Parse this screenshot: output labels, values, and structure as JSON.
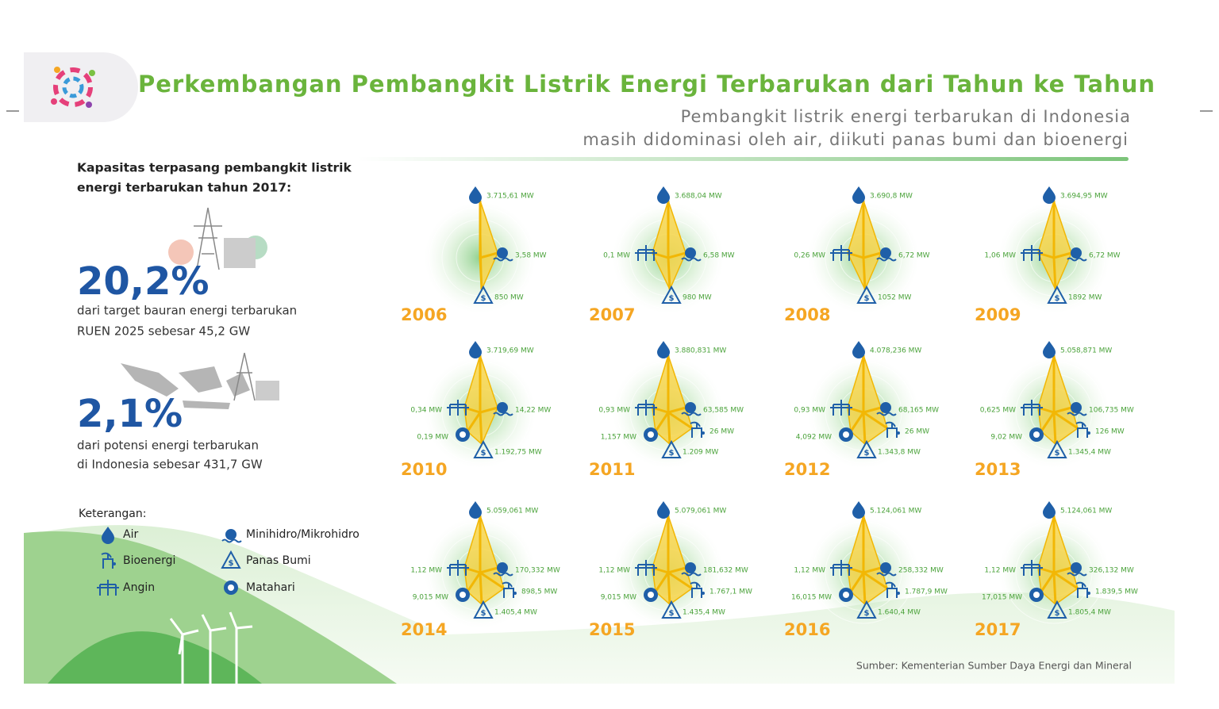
{
  "header": {
    "title": "Perkembangan Pembangkit Listrik Energi Terbarukan dari Tahun ke Tahun",
    "subtitle_lines": [
      "Pembangkit listrik energi terbarukan di Indonesia",
      "masih didominasi oleh air, diikuti panas bumi dan bioenergi"
    ]
  },
  "summary": {
    "heading_lines": [
      "Kapasitas terpasang pembangkit listrik",
      "energi terbarukan tahun 2017:"
    ],
    "stats": [
      {
        "value": "20,2%",
        "lines": [
          "dari target bauran energi terbarukan",
          "RUEN 2025 sebesar 45,2 GW"
        ]
      },
      {
        "value": "2,1%",
        "lines": [
          "dari potensi energi terbarukan",
          "di Indonesia sebesar 431,7 GW"
        ]
      }
    ]
  },
  "legend": {
    "title": "Keterangan:",
    "air": "Air",
    "bioenergi": "Bioenergi",
    "angin": "Angin",
    "minihidro": "Minihidro/Mikrohidro",
    "panas_bumi": "Panas Bumi",
    "matahari": "Matahari"
  },
  "years": [
    {
      "year": "2006",
      "air": "3.715,61 MW",
      "minihidro": "3,58 MW",
      "panas_bumi": "850 MW"
    },
    {
      "year": "2007",
      "air": "3.688,04 MW",
      "minihidro": "6,58 MW",
      "panas_bumi": "980 MW",
      "angin": "0,1 MW"
    },
    {
      "year": "2008",
      "air": "3.690,8 MW",
      "minihidro": "6,72 MW",
      "panas_bumi": "1052 MW",
      "angin": "0,26 MW"
    },
    {
      "year": "2009",
      "air": "3.694,95 MW",
      "minihidro": "6,72 MW",
      "panas_bumi": "1892 MW",
      "angin": "1,06 MW"
    },
    {
      "year": "2010",
      "air": "3.719,69 MW",
      "minihidro": "14,22 MW",
      "panas_bumi": "1.192,75 MW",
      "matahari": "0,19 MW",
      "angin": "0,34 MW"
    },
    {
      "year": "2011",
      "air": "3.880,831 MW",
      "minihidro": "63,585 MW",
      "bioenergi": "26 MW",
      "panas_bumi": "1.209 MW",
      "matahari": "1,157 MW",
      "angin": "0,93 MW"
    },
    {
      "year": "2012",
      "air": "4.078,236 MW",
      "minihidro": "68,165 MW",
      "bioenergi": "26 MW",
      "panas_bumi": "1.343,8 MW",
      "matahari": "4,092 MW",
      "angin": "0,93 MW"
    },
    {
      "year": "2013",
      "air": "5.058,871 MW",
      "minihidro": "106,735 MW",
      "bioenergi": "126 MW",
      "panas_bumi": "1.345,4 MW",
      "matahari": "9,02 MW",
      "angin": "0,625 MW"
    },
    {
      "year": "2014",
      "air": "5.059,061 MW",
      "minihidro": "170,332 MW",
      "bioenergi": "898,5 MW",
      "panas_bumi": "1.405,4 MW",
      "matahari": "9,015 MW",
      "angin": "1,12 MW"
    },
    {
      "year": "2015",
      "air": "5.079,061 MW",
      "minihidro": "181,632 MW",
      "bioenergi": "1.767,1 MW",
      "panas_bumi": "1.435,4 MW",
      "matahari": "9,015 MW",
      "angin": "1,12 MW"
    },
    {
      "year": "2016",
      "air": "5.124,061 MW",
      "minihidro": "258,332 MW",
      "bioenergi": "1.787,9 MW",
      "panas_bumi": "1.640,4 MW",
      "matahari": "16,015 MW",
      "angin": "1,12 MW"
    },
    {
      "year": "2017",
      "air": "5.124,061 MW",
      "minihidro": "326,132 MW",
      "bioenergi": "1.839,5 MW",
      "panas_bumi": "1.805,4 MW",
      "matahari": "17,015 MW",
      "angin": "1,12 MW"
    }
  ],
  "source": "Sumber: Kementerian Sumber Daya Energi dan Mineral"
}
